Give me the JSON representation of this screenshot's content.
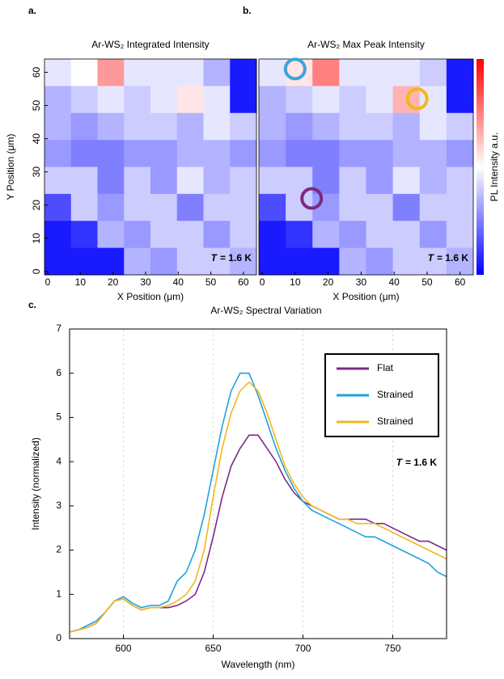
{
  "chart_data": [
    {
      "type": "heatmap",
      "panel_label": "a.",
      "title": "Ar-WS₂ Integrated Intensity",
      "xlabel": "X Position (μm)",
      "ylabel": "Y Position (μm)",
      "xlim": [
        -1,
        64
      ],
      "ylim": [
        -1,
        64
      ],
      "xticks": [
        0,
        10,
        20,
        30,
        40,
        50,
        60
      ],
      "yticks": [
        0,
        10,
        20,
        30,
        40,
        50,
        60
      ],
      "zlim": [
        0,
        1
      ],
      "colormap": [
        "#0000ff",
        "#ffffff",
        "#ff0000"
      ],
      "values": [
        [
          0.45,
          0.5,
          0.7,
          0.45,
          0.45,
          0.45,
          0.35,
          0.05
        ],
        [
          0.35,
          0.4,
          0.45,
          0.4,
          0.45,
          0.55,
          0.45,
          0.05
        ],
        [
          0.35,
          0.3,
          0.35,
          0.4,
          0.4,
          0.35,
          0.45,
          0.4
        ],
        [
          0.3,
          0.25,
          0.25,
          0.3,
          0.3,
          0.35,
          0.35,
          0.3
        ],
        [
          0.4,
          0.4,
          0.25,
          0.4,
          0.3,
          0.45,
          0.35,
          0.4
        ],
        [
          0.15,
          0.4,
          0.3,
          0.4,
          0.4,
          0.25,
          0.4,
          0.4
        ],
        [
          0.05,
          0.1,
          0.35,
          0.3,
          0.4,
          0.4,
          0.3,
          0.4
        ],
        [
          0.05,
          0.05,
          0.05,
          0.35,
          0.3,
          0.4,
          0.4,
          0.35
        ]
      ],
      "annotation": {
        "symbol": "T",
        "text": "= 1.6 K"
      }
    },
    {
      "type": "heatmap",
      "panel_label": "b.",
      "title": "Ar-WS₂ Max Peak Intensity",
      "xlabel": "X Position (μm)",
      "colorbar_label": "PL Intensity a.u.",
      "xlim": [
        -1,
        64
      ],
      "ylim": [
        -1,
        64
      ],
      "xticks": [
        0,
        10,
        20,
        30,
        40,
        50,
        60
      ],
      "zlim": [
        0,
        1
      ],
      "colormap": [
        "#0000ff",
        "#ffffff",
        "#ff0000"
      ],
      "values": [
        [
          0.45,
          0.55,
          0.75,
          0.45,
          0.45,
          0.45,
          0.4,
          0.05
        ],
        [
          0.35,
          0.4,
          0.45,
          0.4,
          0.45,
          0.65,
          0.45,
          0.05
        ],
        [
          0.35,
          0.3,
          0.35,
          0.4,
          0.4,
          0.35,
          0.45,
          0.4
        ],
        [
          0.3,
          0.25,
          0.25,
          0.3,
          0.3,
          0.35,
          0.35,
          0.3
        ],
        [
          0.4,
          0.4,
          0.25,
          0.4,
          0.3,
          0.45,
          0.35,
          0.4
        ],
        [
          0.15,
          0.4,
          0.3,
          0.4,
          0.4,
          0.25,
          0.4,
          0.4
        ],
        [
          0.05,
          0.1,
          0.35,
          0.3,
          0.4,
          0.4,
          0.3,
          0.4
        ],
        [
          0.05,
          0.05,
          0.05,
          0.35,
          0.3,
          0.4,
          0.4,
          0.35
        ]
      ],
      "markers": [
        {
          "x": 10,
          "y": 61,
          "color": "#3aa6d8"
        },
        {
          "x": 47,
          "y": 52,
          "color": "#f2b71c"
        },
        {
          "x": 15,
          "y": 22,
          "color": "#7b2a7f"
        }
      ],
      "annotation": {
        "symbol": "T",
        "text": "= 1.6 K"
      }
    },
    {
      "type": "line",
      "panel_label": "c.",
      "title": "Ar-WS₂ Spectral Variation",
      "xlabel": "Wavelength (nm)",
      "ylabel": "Intensity (normalized)",
      "xlim": [
        570,
        780
      ],
      "ylim": [
        0,
        7
      ],
      "xticks": [
        600,
        650,
        700,
        750
      ],
      "yticks": [
        0,
        1,
        2,
        3,
        4,
        5,
        6,
        7
      ],
      "grid": true,
      "legend": "upper right",
      "x": [
        570,
        575,
        580,
        585,
        590,
        595,
        600,
        605,
        610,
        615,
        620,
        625,
        630,
        635,
        640,
        645,
        650,
        655,
        660,
        665,
        670,
        675,
        680,
        685,
        690,
        695,
        700,
        705,
        710,
        715,
        720,
        725,
        730,
        735,
        740,
        745,
        750,
        755,
        760,
        765,
        770,
        775,
        780
      ],
      "series": [
        {
          "name": "Flat",
          "color": "#7b2a8a",
          "values": [
            0.15,
            0.2,
            0.25,
            0.35,
            0.6,
            0.85,
            0.9,
            0.75,
            0.65,
            0.7,
            0.7,
            0.7,
            0.75,
            0.85,
            1.0,
            1.5,
            2.3,
            3.2,
            3.9,
            4.3,
            4.6,
            4.6,
            4.3,
            4.0,
            3.6,
            3.3,
            3.1,
            3.0,
            2.9,
            2.8,
            2.7,
            2.7,
            2.7,
            2.7,
            2.6,
            2.6,
            2.5,
            2.4,
            2.3,
            2.2,
            2.2,
            2.1,
            2.0
          ]
        },
        {
          "name": "Strained",
          "color": "#1ea3dc",
          "values": [
            0.15,
            0.2,
            0.3,
            0.4,
            0.6,
            0.85,
            0.95,
            0.8,
            0.7,
            0.75,
            0.75,
            0.85,
            1.3,
            1.5,
            2.0,
            2.8,
            3.8,
            4.8,
            5.6,
            6.0,
            6.0,
            5.5,
            4.9,
            4.3,
            3.8,
            3.4,
            3.1,
            2.9,
            2.8,
            2.7,
            2.6,
            2.5,
            2.4,
            2.3,
            2.3,
            2.2,
            2.1,
            2.0,
            1.9,
            1.8,
            1.7,
            1.5,
            1.4
          ]
        },
        {
          "name": "Strained",
          "color": "#f2b71c",
          "values": [
            0.15,
            0.2,
            0.25,
            0.35,
            0.6,
            0.85,
            0.9,
            0.75,
            0.65,
            0.7,
            0.7,
            0.75,
            0.85,
            1.0,
            1.3,
            2.0,
            3.2,
            4.3,
            5.1,
            5.6,
            5.8,
            5.6,
            5.1,
            4.5,
            3.9,
            3.5,
            3.2,
            3.0,
            2.9,
            2.8,
            2.7,
            2.7,
            2.6,
            2.6,
            2.6,
            2.5,
            2.4,
            2.3,
            2.2,
            2.1,
            2.0,
            1.9,
            1.8
          ]
        }
      ],
      "annotation": {
        "symbol": "T",
        "text": "= 1.6 K"
      }
    }
  ]
}
